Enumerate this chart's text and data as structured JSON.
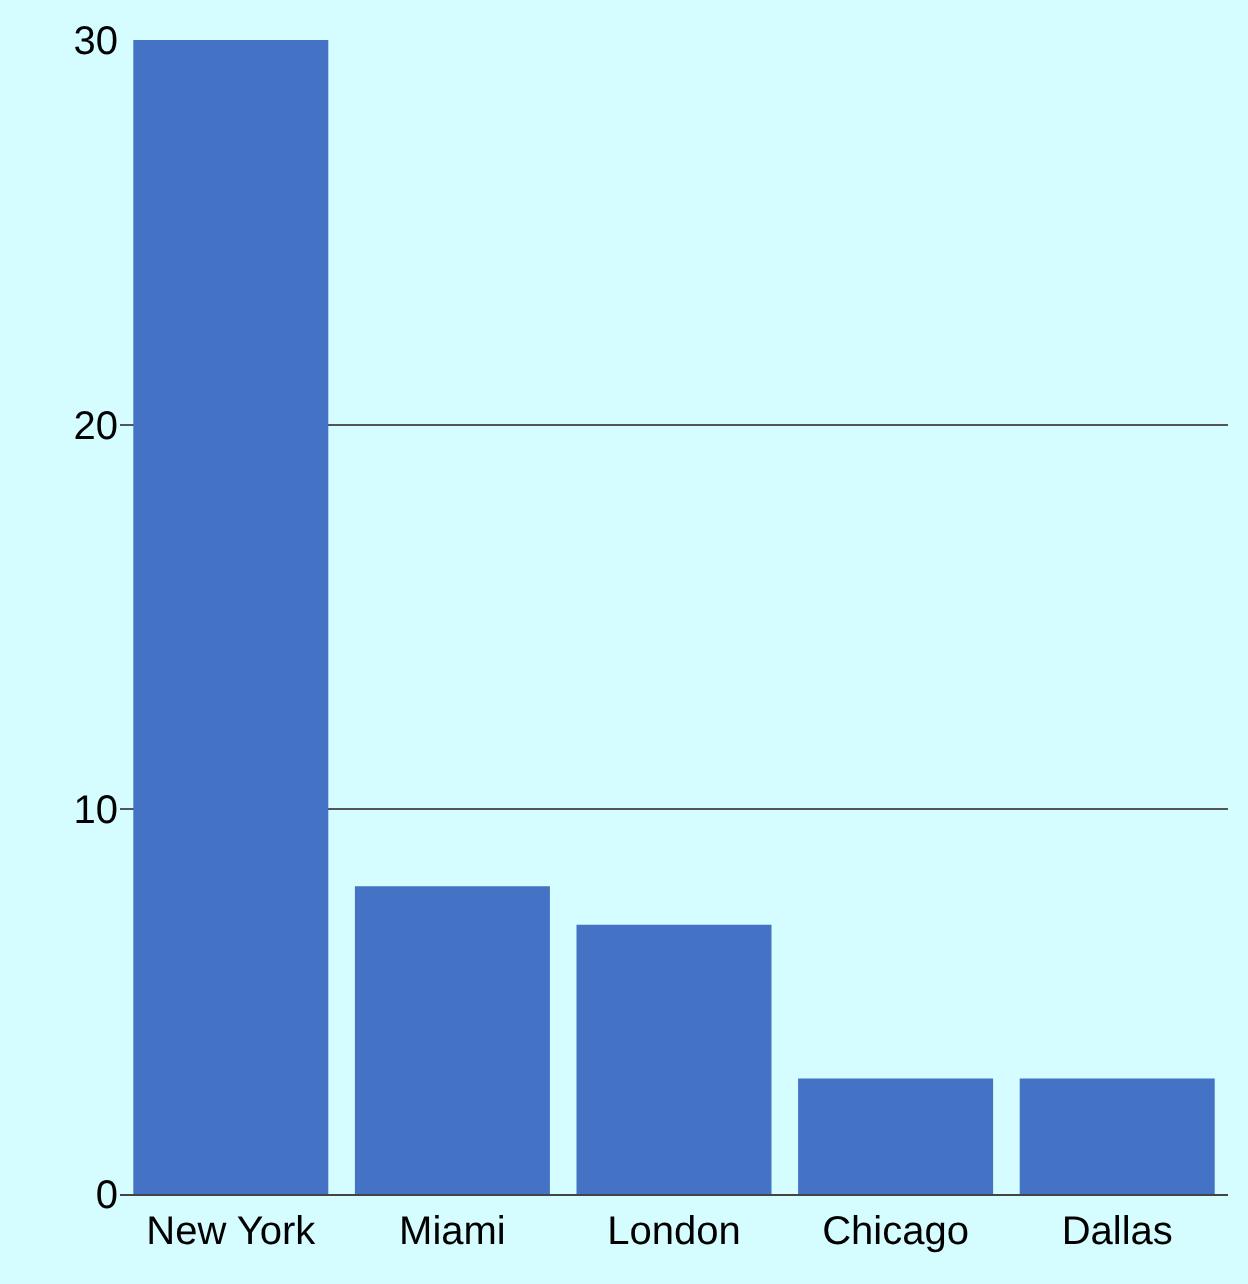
{
  "chart_data": {
    "type": "bar",
    "categories": [
      "New York",
      "Miami",
      "London",
      "Chicago",
      "Dallas"
    ],
    "values": [
      30,
      8,
      7,
      3,
      3
    ],
    "color": "#4472c4",
    "ylim": [
      0,
      30
    ],
    "yticks": [
      0,
      10,
      20,
      30
    ],
    "grid": "y"
  }
}
